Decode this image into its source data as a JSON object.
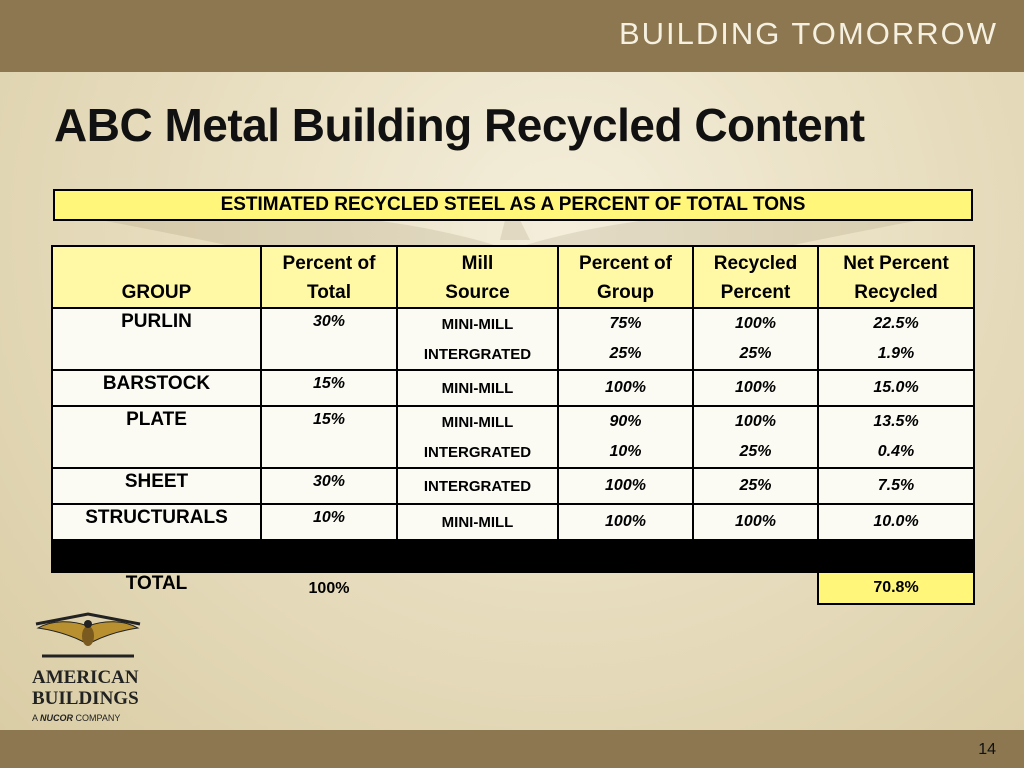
{
  "brand": "BUILDING TOMORROW",
  "title": "ABC Metal Building Recycled Content",
  "table_caption": "ESTIMATED RECYCLED STEEL AS A PERCENT OF TOTAL TONS",
  "columns": {
    "group": "GROUP",
    "pct_total_1": "Percent of",
    "pct_total_2": "Total",
    "mill_1": "Mill",
    "mill_2": "Source",
    "pct_group_1": "Percent of",
    "pct_group_2": "Group",
    "recycled_1": "Recycled",
    "recycled_2": "Percent",
    "net_1": "Net Percent",
    "net_2": "Recycled"
  },
  "rows": [
    {
      "group": "PURLIN",
      "pct_total": "30%",
      "sources": [
        {
          "mill": "MINI-MILL",
          "pct_group": "75%",
          "recycled": "100%",
          "net": "22.5%"
        },
        {
          "mill": "INTERGRATED",
          "pct_group": "25%",
          "recycled": "25%",
          "net": "1.9%"
        }
      ]
    },
    {
      "group": "BARSTOCK",
      "pct_total": "15%",
      "sources": [
        {
          "mill": "MINI-MILL",
          "pct_group": "100%",
          "recycled": "100%",
          "net": "15.0%"
        }
      ]
    },
    {
      "group": "PLATE",
      "pct_total": "15%",
      "sources": [
        {
          "mill": "MINI-MILL",
          "pct_group": "90%",
          "recycled": "100%",
          "net": "13.5%"
        },
        {
          "mill": "INTERGRATED",
          "pct_group": "10%",
          "recycled": "25%",
          "net": "0.4%"
        }
      ]
    },
    {
      "group": "SHEET",
      "pct_total": "30%",
      "sources": [
        {
          "mill": "INTERGRATED",
          "pct_group": "100%",
          "recycled": "25%",
          "net": "7.5%"
        }
      ]
    },
    {
      "group": "STRUCTURALS",
      "pct_total": "10%",
      "sources": [
        {
          "mill": "MINI-MILL",
          "pct_group": "100%",
          "recycled": "100%",
          "net": "10.0%"
        }
      ]
    }
  ],
  "total": {
    "label": "TOTAL",
    "pct_total": "100%",
    "net": "70.8%"
  },
  "logo": {
    "line1": "AMERICAN",
    "line2": "BUILDINGS",
    "prefix": "A",
    "company": "NUCOR",
    "suffix": "COMPANY"
  },
  "page_number": "14",
  "colors": {
    "bar": "#8c7750",
    "highlight": "#fff67a",
    "header_fill": "#fff8a4"
  }
}
